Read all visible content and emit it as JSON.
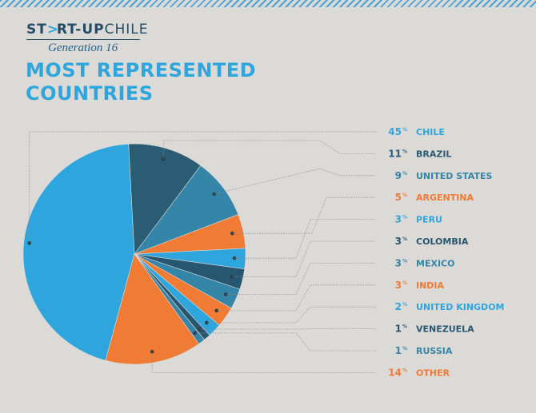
{
  "header": {
    "logo": {
      "left": "ST",
      "right": "RT-UP",
      "end": "CHILE"
    },
    "generation": "Generation 16",
    "title_line1": "MOST REPRESENTED",
    "title_line2": "COUNTRIES"
  },
  "colors": {
    "background": "#dcdad7",
    "chile": "#2ea6dd",
    "brazil": "#2a5c74",
    "united_states": "#3485a7",
    "argentina": "#ef7b34",
    "peru": "#2ea6dd",
    "colombia": "#275770",
    "mexico": "#3485a7",
    "india": "#ef7b34",
    "united_kingdom": "#2ea6dd",
    "venezuela": "#275770",
    "russia": "#3485a7",
    "other": "#ef7b34"
  },
  "chart_data": {
    "type": "pie",
    "legend_position": "right",
    "slices": [
      {
        "label": "CHILE",
        "value": 45,
        "color": "#2ea6dd"
      },
      {
        "label": "BRAZIL",
        "value": 11,
        "color": "#2a5c74"
      },
      {
        "label": "UNITED STATES",
        "value": 9,
        "color": "#3485a7"
      },
      {
        "label": "ARGENTINA",
        "value": 5,
        "color": "#ef7b34"
      },
      {
        "label": "PERU",
        "value": 3,
        "color": "#2ea6dd"
      },
      {
        "label": "COLOMBIA",
        "value": 3,
        "color": "#275770"
      },
      {
        "label": "MEXICO",
        "value": 3,
        "color": "#3485a7"
      },
      {
        "label": "INDIA",
        "value": 3,
        "color": "#ef7b34"
      },
      {
        "label": "UNITED KINGDOM",
        "value": 2,
        "color": "#2ea6dd"
      },
      {
        "label": "VENEZUELA",
        "value": 1,
        "color": "#275770"
      },
      {
        "label": "RUSSIA",
        "value": 1,
        "color": "#3485a7"
      },
      {
        "label": "OTHER",
        "value": 14,
        "color": "#ef7b34"
      }
    ],
    "percent_sign": "%"
  }
}
